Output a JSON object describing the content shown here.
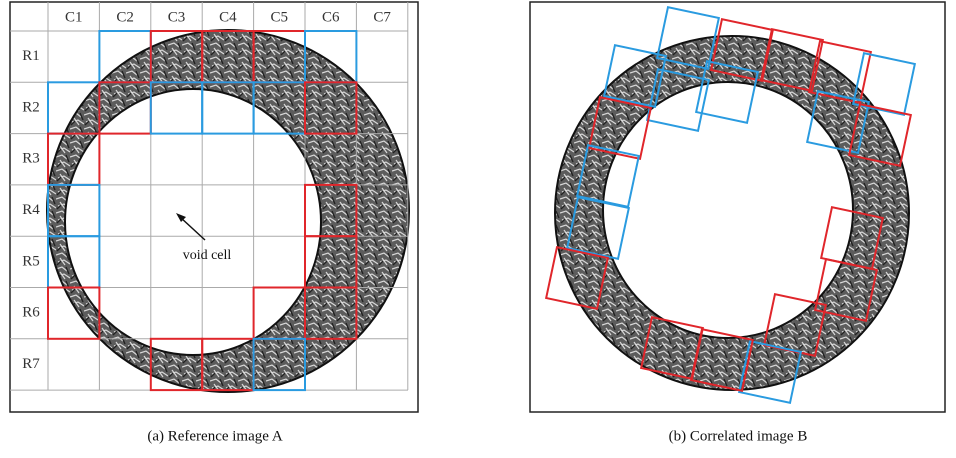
{
  "panel_a": {
    "columns": [
      "C1",
      "C2",
      "C3",
      "C4",
      "C5",
      "C6",
      "C7"
    ],
    "rows": [
      "R1",
      "R2",
      "R3",
      "R4",
      "R5",
      "R6",
      "R7"
    ],
    "annotation": "void cell",
    "caption": "(a) Reference image A"
  },
  "panel_b": {
    "caption": "(b) Correlated image B"
  }
}
